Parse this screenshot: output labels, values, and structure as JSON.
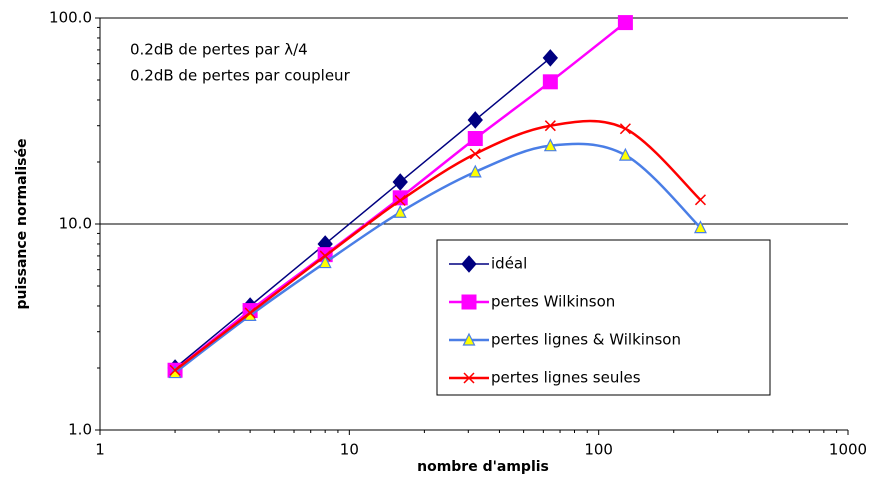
{
  "chart_data": {
    "type": "line",
    "log_x": true,
    "log_y": true,
    "smooth": true,
    "grid": true,
    "xlabel": "nombre d'amplis",
    "ylabel": "puissance normalisée",
    "annotations": [
      "0.2dB de pertes par λ/4",
      "0.2dB de pertes par coupleur"
    ],
    "x": [
      2,
      4,
      8,
      16,
      32,
      64,
      128,
      256
    ],
    "xlim": [
      1,
      1000
    ],
    "xticks": [
      1,
      10,
      100,
      1000
    ],
    "ylim": [
      1,
      100
    ],
    "yticks": [
      {
        "value": 1,
        "label": "1.0"
      },
      {
        "value": 10,
        "label": "10.0"
      },
      {
        "value": 100,
        "label": "100.0"
      }
    ],
    "series": [
      {
        "name": "idéal",
        "color": "#000080",
        "marker": "diamond",
        "marker_fill": "#000080",
        "values": [
          2,
          4,
          8,
          16,
          32,
          64,
          null,
          null
        ]
      },
      {
        "name": "pertes Wilkinson",
        "color": "#ff00ff",
        "marker": "square",
        "marker_fill": "#ff00ff",
        "values": [
          1.95,
          3.8,
          7.1,
          13.4,
          26,
          49,
          95,
          null
        ]
      },
      {
        "name": "pertes lignes & Wilkinson",
        "color": "#4a7ee6",
        "marker": "triangle",
        "marker_fill": "#ffff00",
        "values": [
          1.9,
          3.6,
          6.5,
          11.4,
          17.9,
          24,
          21.6,
          9.6
        ]
      },
      {
        "name": "pertes lignes seules",
        "color": "#ff0000",
        "marker": "x",
        "marker_fill": "#ff0000",
        "values": [
          1.95,
          3.7,
          7,
          13,
          21.9,
          30,
          29,
          13.1
        ]
      }
    ]
  }
}
